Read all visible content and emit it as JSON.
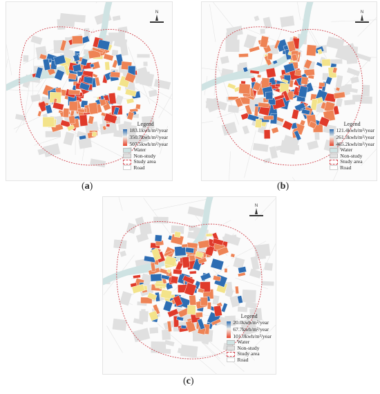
{
  "panels": [
    {
      "caption_letter": "a",
      "legend": {
        "title": "Legend",
        "ramp_labels": [
          "183.1kwh/m²/year",
          "350.7kwh/m²/year",
          "507.5kwh/m²/year"
        ],
        "layers": [
          "Water",
          "Non-study",
          "Study area",
          "Road"
        ]
      }
    },
    {
      "caption_letter": "b",
      "legend": {
        "title": "Legend",
        "ramp_labels": [
          "121.4kwh/m²/year",
          "261.3kwh/m²/year",
          "465.2kwh/m²/year"
        ],
        "layers": [
          "Water",
          "Non-study",
          "Study area",
          "Road"
        ]
      }
    },
    {
      "caption_letter": "c",
      "legend": {
        "title": "Legend",
        "ramp_labels": [
          "20.0kwh/m²/year",
          "67.7kwh/m²/year",
          "101.0kwh/m²/year"
        ],
        "layers": [
          "Water",
          "Non-study",
          "Study area",
          "Road"
        ]
      }
    }
  ],
  "north_arrow": {
    "label": "N"
  },
  "colors": {
    "low": "#2d6db3",
    "mid": "#f3e38a",
    "high": "#e03a2a",
    "high_mid": "#ee8355",
    "water": "#cfe3e3",
    "non_study": "#e0e0e0",
    "study_boundary": "#d0404a"
  }
}
